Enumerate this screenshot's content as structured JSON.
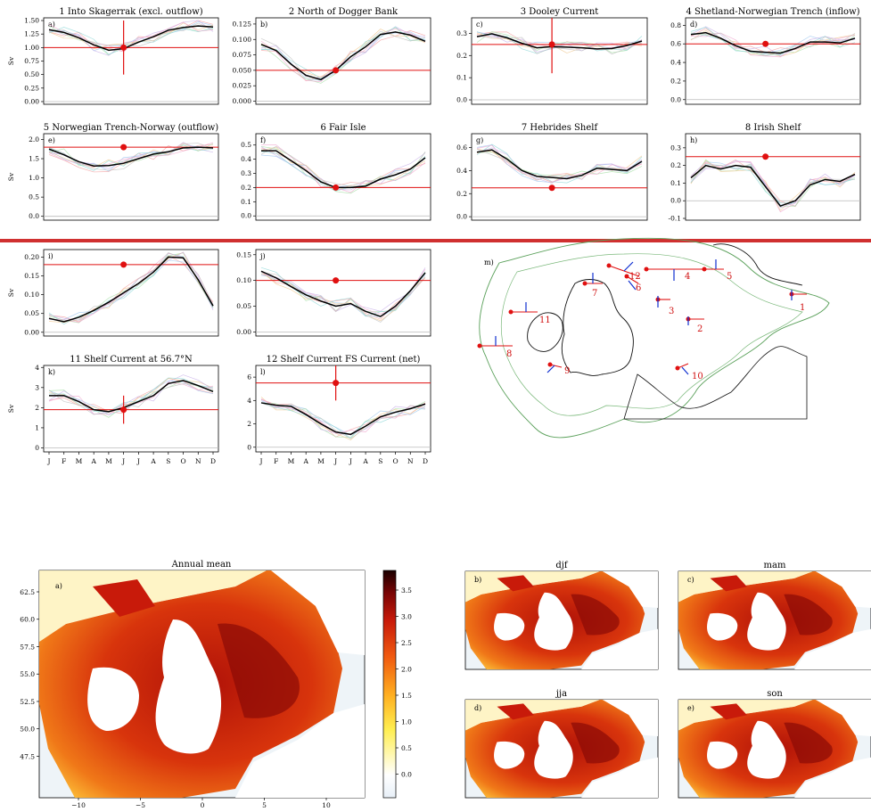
{
  "chart_data": [
    {
      "type": "line",
      "panel": "a)",
      "title": "1 Into Skagerrak (excl. outflow)",
      "ylabel": "Sv",
      "x": [
        "J",
        "F",
        "M",
        "A",
        "M",
        "J",
        "J",
        "A",
        "S",
        "O",
        "N",
        "D"
      ],
      "ylim": [
        -0.05,
        1.55
      ],
      "yticks": [
        0.0,
        0.25,
        0.5,
        0.75,
        1.0,
        1.25,
        1.5
      ],
      "mean": [
        1.33,
        1.28,
        1.18,
        1.05,
        0.95,
        0.98,
        1.1,
        1.2,
        1.32,
        1.37,
        1.4,
        1.38
      ],
      "observation": {
        "month": 6,
        "value": 1.0,
        "err_low": 0.5,
        "err_high": 1.5
      }
    },
    {
      "type": "line",
      "panel": "b)",
      "title": "2 North of Dogger Bank",
      "ylabel": "",
      "x": [
        "J",
        "F",
        "M",
        "A",
        "M",
        "J",
        "J",
        "A",
        "S",
        "O",
        "N",
        "D"
      ],
      "ylim": [
        -0.005,
        0.135
      ],
      "yticks": [
        0.0,
        0.025,
        0.05,
        0.075,
        0.1,
        0.125
      ],
      "mean": [
        0.092,
        0.082,
        0.06,
        0.042,
        0.035,
        0.05,
        0.072,
        0.088,
        0.108,
        0.112,
        0.107,
        0.097
      ],
      "observation": {
        "month": 6,
        "value": 0.05,
        "err_low": null,
        "err_high": null
      }
    },
    {
      "type": "line",
      "panel": "c)",
      "title": "3 Dooley Current",
      "ylabel": "",
      "x": [
        "J",
        "F",
        "M",
        "A",
        "M",
        "J",
        "J",
        "A",
        "S",
        "O",
        "N",
        "D"
      ],
      "ylim": [
        -0.02,
        0.37
      ],
      "yticks": [
        0.0,
        0.1,
        0.2,
        0.3
      ],
      "mean": [
        0.285,
        0.298,
        0.28,
        0.255,
        0.235,
        0.24,
        0.238,
        0.235,
        0.23,
        0.232,
        0.245,
        0.265
      ],
      "observation": {
        "month": 6,
        "value": 0.25,
        "err_low": 0.12,
        "err_high": 0.38
      }
    },
    {
      "type": "line",
      "panel": "d)",
      "title": "4 Shetland-Norwegian Trench (inflow)",
      "ylabel": "",
      "x": [
        "J",
        "F",
        "M",
        "A",
        "M",
        "J",
        "J",
        "A",
        "S",
        "O",
        "N",
        "D"
      ],
      "ylim": [
        -0.05,
        0.88
      ],
      "yticks": [
        0.0,
        0.2,
        0.4,
        0.6,
        0.8
      ],
      "mean": [
        0.7,
        0.72,
        0.66,
        0.58,
        0.52,
        0.51,
        0.5,
        0.55,
        0.62,
        0.62,
        0.61,
        0.66
      ],
      "observation": {
        "month": 6,
        "value": 0.6,
        "err_low": null,
        "err_high": null
      }
    },
    {
      "type": "line",
      "panel": "e)",
      "title": "5 Norwegian Trench-Norway (outflow)",
      "ylabel": "Sv",
      "x": [
        "J",
        "F",
        "M",
        "A",
        "M",
        "J",
        "J",
        "A",
        "S",
        "O",
        "N",
        "D"
      ],
      "ylim": [
        -0.1,
        2.15
      ],
      "yticks": [
        0.0,
        0.5,
        1.0,
        1.5,
        2.0
      ],
      "mean": [
        1.75,
        1.6,
        1.42,
        1.31,
        1.32,
        1.38,
        1.5,
        1.62,
        1.68,
        1.78,
        1.8,
        1.78
      ],
      "observation": {
        "month": 6,
        "value": 1.8,
        "err_low": null,
        "err_high": null
      }
    },
    {
      "type": "line",
      "panel": "f)",
      "title": "6 Fair Isle",
      "ylabel": "",
      "x": [
        "J",
        "F",
        "M",
        "A",
        "M",
        "J",
        "J",
        "A",
        "S",
        "O",
        "N",
        "D"
      ],
      "ylim": [
        -0.03,
        0.58
      ],
      "yticks": [
        0.0,
        0.1,
        0.2,
        0.3,
        0.4,
        0.5
      ],
      "mean": [
        0.46,
        0.46,
        0.39,
        0.32,
        0.24,
        0.2,
        0.2,
        0.21,
        0.26,
        0.29,
        0.33,
        0.41
      ],
      "observation": {
        "month": 6,
        "value": 0.2,
        "err_low": null,
        "err_high": null
      }
    },
    {
      "type": "line",
      "panel": "g)",
      "title": "7 Hebrides Shelf",
      "ylabel": "",
      "x": [
        "J",
        "F",
        "M",
        "A",
        "M",
        "J",
        "J",
        "A",
        "S",
        "O",
        "N",
        "D"
      ],
      "ylim": [
        -0.03,
        0.72
      ],
      "yticks": [
        0.0,
        0.2,
        0.4,
        0.6
      ],
      "mean": [
        0.56,
        0.58,
        0.5,
        0.4,
        0.35,
        0.34,
        0.33,
        0.36,
        0.42,
        0.41,
        0.4,
        0.48
      ],
      "observation": {
        "month": 6,
        "value": 0.25,
        "err_low": null,
        "err_high": null
      }
    },
    {
      "type": "line",
      "panel": "h)",
      "title": "8 Irish Shelf",
      "ylabel": "",
      "x": [
        "J",
        "F",
        "M",
        "A",
        "M",
        "J",
        "J",
        "A",
        "S",
        "O",
        "N",
        "D"
      ],
      "ylim": [
        -0.11,
        0.38
      ],
      "yticks": [
        -0.1,
        0.0,
        0.1,
        0.2,
        0.3
      ],
      "mean": [
        0.13,
        0.2,
        0.18,
        0.2,
        0.19,
        0.08,
        -0.03,
        0.0,
        0.09,
        0.12,
        0.11,
        0.15
      ],
      "observation": {
        "month": 6,
        "value": 0.25,
        "err_low": null,
        "err_high": null
      }
    },
    {
      "type": "line",
      "panel": "i)",
      "title": "",
      "ylabel": "Sv",
      "x": [
        "J",
        "F",
        "M",
        "A",
        "M",
        "J",
        "J",
        "A",
        "S",
        "O",
        "N",
        "D"
      ],
      "ylim": [
        -0.01,
        0.22
      ],
      "yticks": [
        0.0,
        0.05,
        0.1,
        0.15,
        0.2
      ],
      "mean": [
        0.037,
        0.028,
        0.04,
        0.058,
        0.08,
        0.105,
        0.13,
        0.16,
        0.2,
        0.198,
        0.14,
        0.07
      ],
      "observation": {
        "month": 6,
        "value": 0.18,
        "err_low": null,
        "err_high": null
      }
    },
    {
      "type": "line",
      "panel": "j)",
      "title": "",
      "ylabel": "",
      "x": [
        "J",
        "F",
        "M",
        "A",
        "M",
        "J",
        "J",
        "A",
        "S",
        "O",
        "N",
        "D"
      ],
      "ylim": [
        -0.008,
        0.16
      ],
      "yticks": [
        0.0,
        0.05,
        0.1,
        0.15
      ],
      "mean": [
        0.118,
        0.105,
        0.088,
        0.072,
        0.06,
        0.05,
        0.055,
        0.04,
        0.03,
        0.05,
        0.08,
        0.115
      ],
      "observation": {
        "month": 6,
        "value": 0.1,
        "err_low": null,
        "err_high": null
      }
    },
    {
      "type": "line",
      "panel": "k)",
      "title": "11 Shelf Current at 56.7°N",
      "ylabel": "Sv",
      "x": [
        "J",
        "F",
        "M",
        "A",
        "M",
        "J",
        "J",
        "A",
        "S",
        "O",
        "N",
        "D"
      ],
      "ylim": [
        -0.2,
        4.1
      ],
      "yticks": [
        0,
        1,
        2,
        3,
        4
      ],
      "mean": [
        2.6,
        2.6,
        2.3,
        1.9,
        1.8,
        2.0,
        2.3,
        2.6,
        3.2,
        3.35,
        3.1,
        2.8
      ],
      "observation": {
        "month": 6,
        "value": 1.9,
        "err_low": 1.2,
        "err_high": 2.6
      }
    },
    {
      "type": "line",
      "panel": "l)",
      "title": "12 Shelf Current FS Current (net)",
      "ylabel": "",
      "x": [
        "J",
        "F",
        "M",
        "A",
        "M",
        "J",
        "J",
        "A",
        "S",
        "O",
        "N",
        "D"
      ],
      "ylim": [
        -0.4,
        7.0
      ],
      "yticks": [
        0,
        2,
        4,
        6
      ],
      "mean": [
        3.8,
        3.6,
        3.5,
        2.8,
        2.0,
        1.3,
        1.1,
        1.8,
        2.6,
        3.0,
        3.3,
        3.7
      ],
      "observation": {
        "month": 6,
        "value": 5.5,
        "err_low": 4.0,
        "err_high": 7.0
      }
    }
  ],
  "map_panel": {
    "label": "m)",
    "sections": [
      "1",
      "2",
      "3",
      "4",
      "5",
      "6",
      "7",
      "8",
      "9",
      "10",
      "11",
      "12"
    ]
  },
  "heatmaps": {
    "main": {
      "label": "a)",
      "title": "Annual mean",
      "yticks": [
        "62.5",
        "60.0",
        "57.5",
        "55.0",
        "52.5",
        "50.0",
        "47.5"
      ],
      "xticks": [
        "−10",
        "−5",
        "0",
        "5",
        "10"
      ],
      "colorbar_ticks": [
        "3.5",
        "3.0",
        "2.5",
        "2.0",
        "1.5",
        "1.0",
        "0.5",
        "0.0"
      ]
    },
    "small": [
      {
        "label": "b)",
        "title": "djf"
      },
      {
        "label": "c)",
        "title": "mam"
      },
      {
        "label": "d)",
        "title": "jja"
      },
      {
        "label": "e)",
        "title": "son"
      }
    ]
  },
  "colors": {
    "mean": "#000000",
    "obs": "#e01010",
    "zero": "#bbbbbb",
    "land": "#ffffff",
    "divider": "#d03030"
  }
}
